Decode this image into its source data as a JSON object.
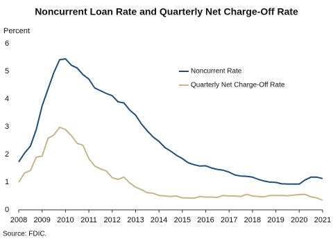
{
  "chart_data": {
    "type": "line",
    "title": "Noncurrent Loan Rate and Quarterly Net Charge-Off Rate",
    "y_label": "Percent",
    "source": "Source: FDIC.",
    "legend": "upper right",
    "x": [
      2008,
      2008.25,
      2008.5,
      2008.75,
      2009,
      2009.25,
      2009.5,
      2009.75,
      2010,
      2010.25,
      2010.5,
      2010.75,
      2011,
      2011.25,
      2011.5,
      2011.75,
      2012,
      2012.25,
      2012.5,
      2012.75,
      2013,
      2013.25,
      2013.5,
      2013.75,
      2014,
      2014.25,
      2014.5,
      2014.75,
      2015,
      2015.25,
      2015.5,
      2015.75,
      2016,
      2016.25,
      2016.5,
      2016.75,
      2017,
      2017.25,
      2017.5,
      2017.75,
      2018,
      2018.25,
      2018.5,
      2018.75,
      2019,
      2019.25,
      2019.5,
      2019.75,
      2020,
      2020.25,
      2020.5,
      2020.75,
      2021
    ],
    "series": [
      {
        "name": "Noncurrent Rate",
        "color": "#1f4e79",
        "values": [
          1.73,
          2.05,
          2.3,
          2.9,
          3.75,
          4.35,
          4.95,
          5.42,
          5.45,
          5.22,
          5.12,
          4.88,
          4.72,
          4.4,
          4.3,
          4.2,
          4.12,
          3.9,
          3.86,
          3.6,
          3.42,
          3.1,
          2.85,
          2.63,
          2.47,
          2.25,
          2.12,
          1.97,
          1.85,
          1.7,
          1.63,
          1.58,
          1.59,
          1.51,
          1.46,
          1.43,
          1.36,
          1.26,
          1.22,
          1.21,
          1.18,
          1.1,
          1.04,
          1.0,
          0.99,
          0.94,
          0.93,
          0.93,
          0.93,
          1.08,
          1.18,
          1.18,
          1.13
        ]
      },
      {
        "name": "Quarterly Net Charge-Off Rate",
        "color": "#c8b48a",
        "values": [
          1.0,
          1.33,
          1.42,
          1.9,
          1.94,
          2.58,
          2.7,
          2.98,
          2.9,
          2.68,
          2.4,
          2.33,
          1.85,
          1.58,
          1.48,
          1.4,
          1.16,
          1.1,
          1.18,
          0.97,
          0.82,
          0.73,
          0.62,
          0.6,
          0.52,
          0.5,
          0.48,
          0.5,
          0.43,
          0.43,
          0.42,
          0.48,
          0.46,
          0.46,
          0.45,
          0.52,
          0.5,
          0.5,
          0.48,
          0.56,
          0.5,
          0.48,
          0.47,
          0.52,
          0.52,
          0.52,
          0.51,
          0.53,
          0.55,
          0.56,
          0.47,
          0.43,
          0.35
        ]
      }
    ],
    "xlim": [
      2008,
      2021
    ],
    "xticks": [
      2008,
      2009,
      2010,
      2011,
      2012,
      2013,
      2014,
      2015,
      2016,
      2017,
      2018,
      2019,
      2020,
      2021
    ],
    "ylim": [
      0,
      6
    ],
    "yticks": [
      0,
      1,
      2,
      3,
      4,
      5,
      6
    ],
    "grid": false
  }
}
